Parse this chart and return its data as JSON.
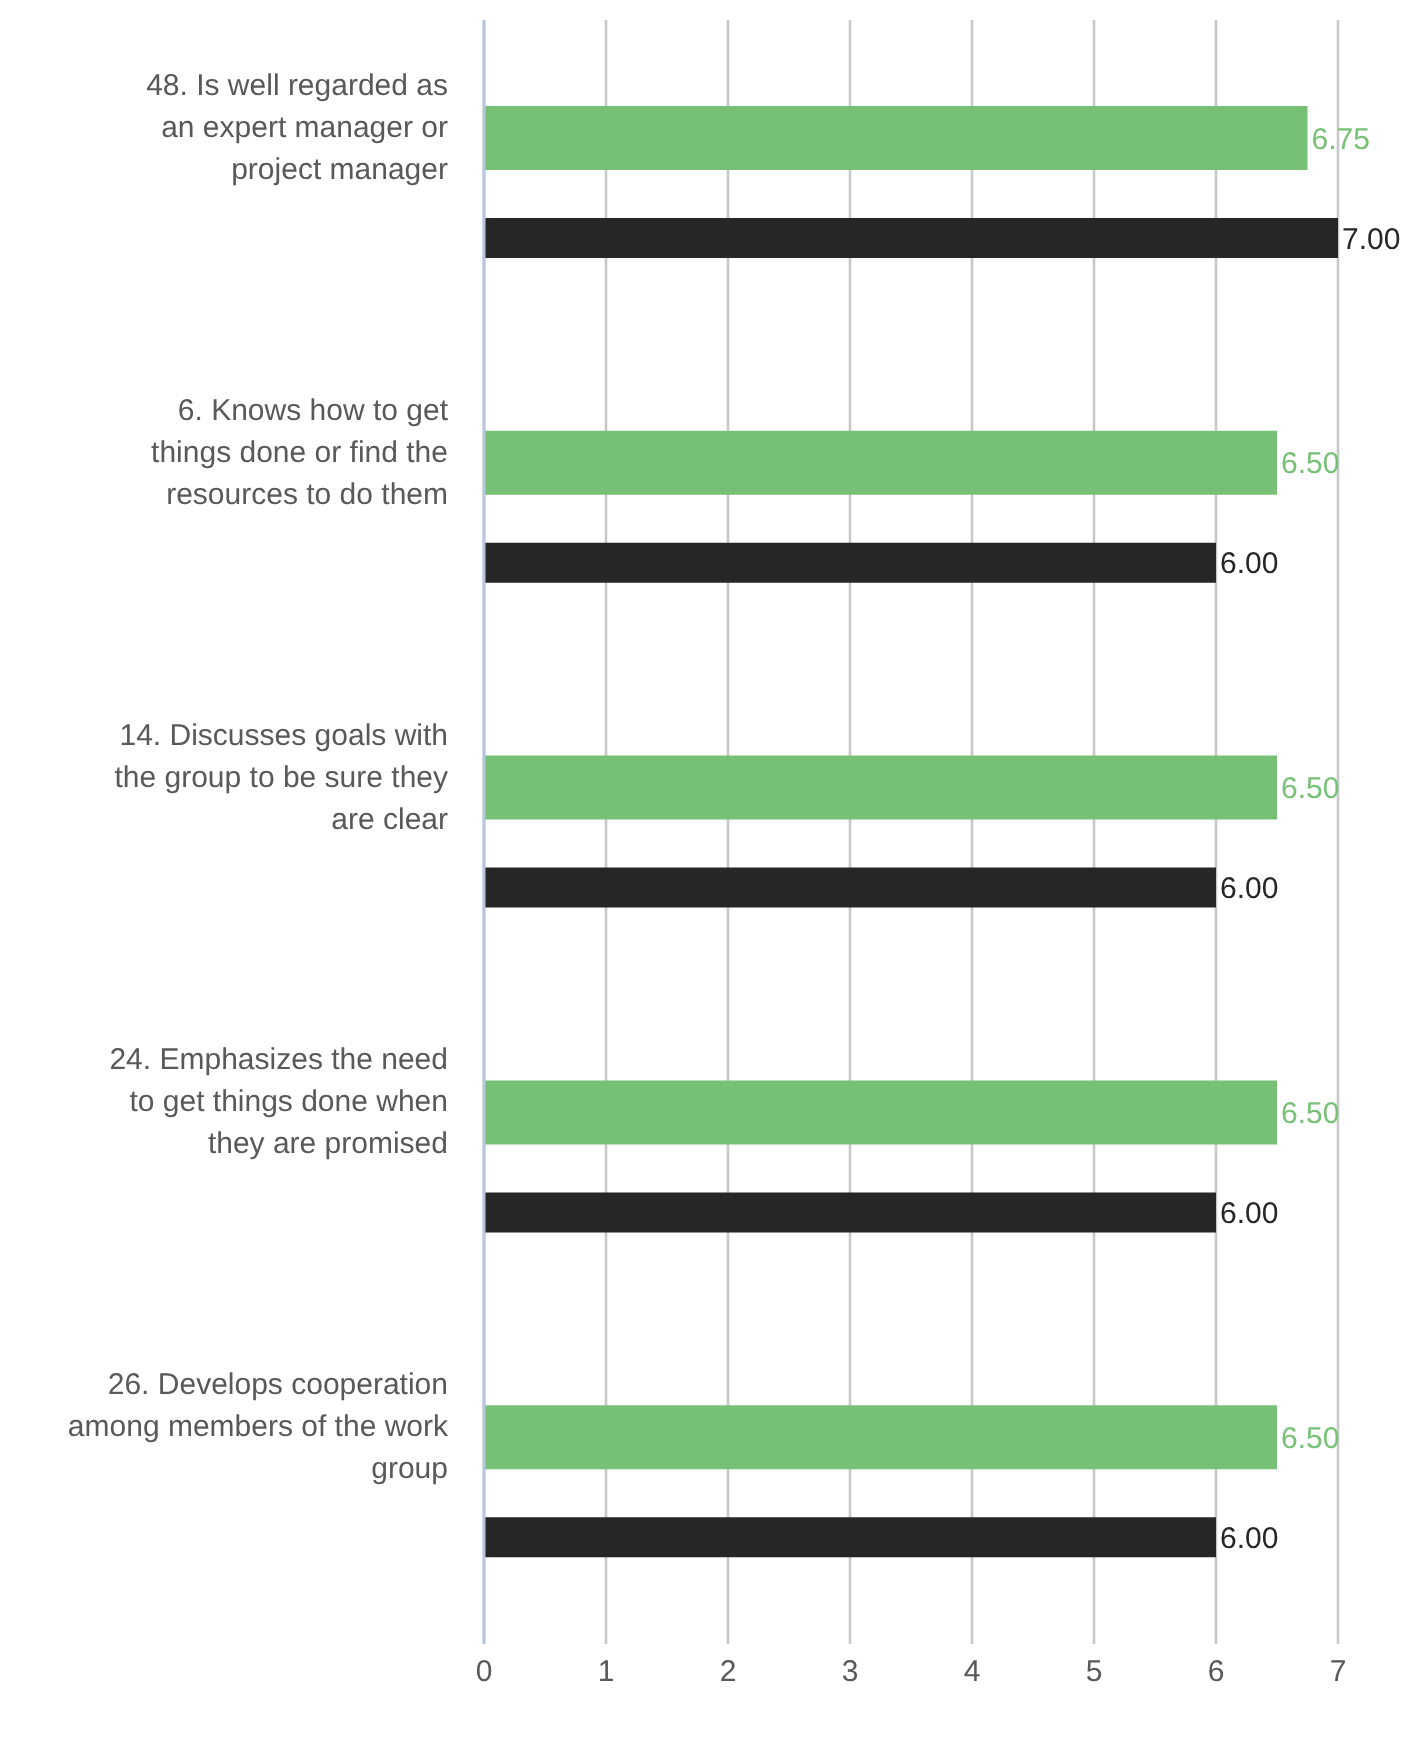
{
  "chart_data": {
    "type": "bar",
    "orientation": "horizontal",
    "categories": [
      "48. Is well regarded as an expert manager or project manager",
      "6. Knows how to get things done or find the resources to do them",
      "14. Discusses goals with the group to be sure they are clear",
      "24. Emphasizes the need to get things done when they are promised",
      "26. Develops cooperation among members of the work group"
    ],
    "series": [
      {
        "color": "#77c177",
        "values": [
          6.75,
          6.5,
          6.5,
          6.5,
          6.5
        ],
        "value_labels": [
          "6.75",
          "6.50",
          "6.50",
          "6.50",
          "6.50"
        ]
      },
      {
        "color": "#262626",
        "values": [
          7,
          6,
          6,
          6,
          6
        ],
        "value_labels": [
          "7.00",
          "6.00",
          "6.00",
          "6.00",
          "6.00"
        ]
      }
    ],
    "xlim": [
      0,
      7
    ],
    "xticks": [
      0,
      1,
      2,
      3,
      4,
      5,
      6,
      7
    ],
    "grid": "x",
    "legend": false
  }
}
